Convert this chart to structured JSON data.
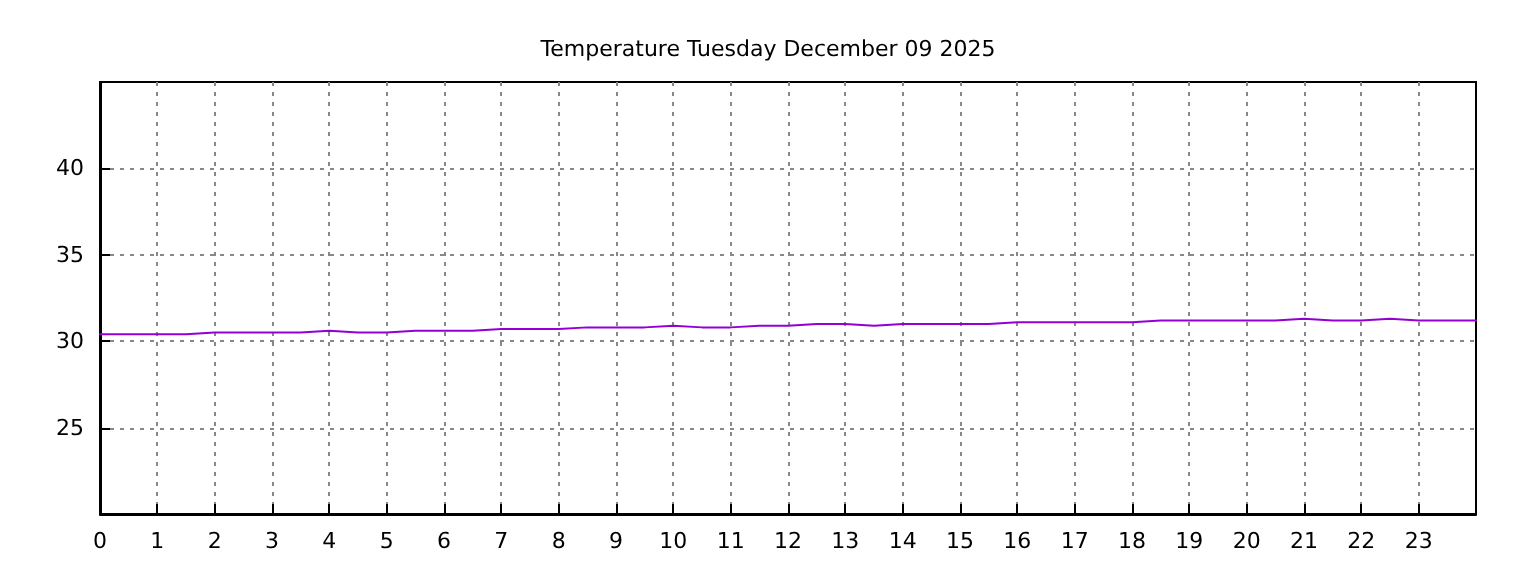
{
  "chart_data": {
    "type": "line",
    "title": "Temperature Tuesday December 09 2025",
    "x": [
      0,
      1.5,
      2,
      3.5,
      4,
      4.5,
      5,
      5.5,
      6.5,
      7,
      8,
      8.5,
      9.5,
      10,
      10.5,
      11,
      11.5,
      12,
      12.5,
      13,
      13.5,
      14,
      15.5,
      16,
      18,
      18.5,
      20.5,
      21,
      21.5,
      22,
      22.5,
      23,
      24
    ],
    "series": [
      {
        "color": "#9400d3",
        "values": [
          30.4,
          30.4,
          30.5,
          30.5,
          30.6,
          30.5,
          30.5,
          30.6,
          30.6,
          30.7,
          30.7,
          30.8,
          30.8,
          30.9,
          30.8,
          30.8,
          30.9,
          30.9,
          31.0,
          31.0,
          30.9,
          31.0,
          31.0,
          31.1,
          31.1,
          31.2,
          31.2,
          31.3,
          31.2,
          31.2,
          31.3,
          31.2,
          31.2
        ]
      }
    ],
    "xlim": [
      0,
      24
    ],
    "xticks": [
      0,
      1,
      2,
      3,
      4,
      5,
      6,
      7,
      8,
      9,
      10,
      11,
      12,
      13,
      14,
      15,
      16,
      17,
      18,
      19,
      20,
      21,
      22,
      23
    ],
    "ylim": [
      20,
      45
    ],
    "yticks": [
      25,
      30,
      35,
      40
    ],
    "grid": true,
    "line_style": "solid",
    "marker": "none"
  }
}
